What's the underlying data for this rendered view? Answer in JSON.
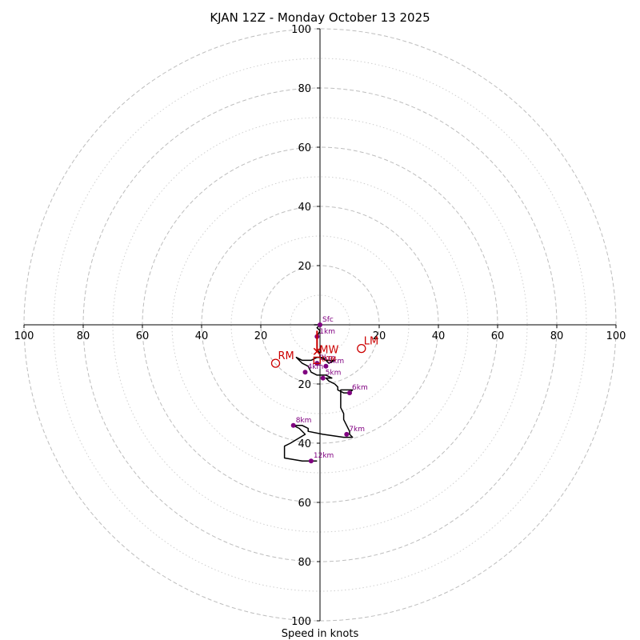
{
  "chart_data": {
    "type": "hodograph",
    "title": "KJAN 12Z - Monday October 13 2025",
    "xlabel": "Speed in knots",
    "xlim": [
      -100,
      100
    ],
    "ylim": [
      -100,
      100
    ],
    "tick_labels": [
      "100",
      "80",
      "60",
      "40",
      "20"
    ],
    "ring_speeds_dashed": [
      20,
      40,
      60,
      80,
      100
    ],
    "ring_speeds_dotted": [
      10,
      30,
      50,
      70,
      90
    ],
    "hodograph_trace": [
      [
        -2,
        0
      ],
      [
        0,
        0
      ],
      [
        -1,
        -1
      ],
      [
        0,
        -2
      ],
      [
        -1,
        -4
      ],
      [
        -1,
        -6
      ],
      [
        -1,
        -8
      ],
      [
        0,
        -10
      ],
      [
        0,
        -11
      ],
      [
        2,
        -12
      ],
      [
        5,
        -12
      ],
      [
        3,
        -13
      ],
      [
        1,
        -11
      ],
      [
        -1,
        -11
      ],
      [
        -3,
        -12
      ],
      [
        -6,
        -12
      ],
      [
        -8,
        -11
      ],
      [
        -6,
        -13
      ],
      [
        -4,
        -14
      ],
      [
        -3,
        -16
      ],
      [
        -1,
        -17
      ],
      [
        2,
        -17
      ],
      [
        4,
        -18
      ],
      [
        2,
        -18
      ],
      [
        3,
        -19
      ],
      [
        5,
        -20
      ],
      [
        6,
        -21
      ],
      [
        6,
        -22
      ],
      [
        8,
        -23
      ],
      [
        10,
        -23
      ],
      [
        11,
        -22
      ],
      [
        10,
        -22
      ],
      [
        7,
        -22
      ],
      [
        7,
        -24
      ],
      [
        7,
        -26
      ],
      [
        7,
        -27
      ],
      [
        7,
        -28
      ],
      [
        8,
        -30
      ],
      [
        8,
        -32
      ],
      [
        9,
        -34
      ],
      [
        10,
        -36
      ],
      [
        10,
        -37
      ],
      [
        11,
        -38
      ],
      [
        8,
        -38
      ],
      [
        1,
        -37
      ],
      [
        -4,
        -36
      ],
      [
        -4,
        -35
      ],
      [
        -6,
        -34
      ],
      [
        -9,
        -34
      ],
      [
        -7,
        -35
      ],
      [
        -5,
        -37
      ],
      [
        -10,
        -40
      ],
      [
        -12,
        -41
      ],
      [
        -12,
        -45
      ],
      [
        -6,
        -46
      ],
      [
        -3,
        -46
      ],
      [
        -1,
        -46
      ]
    ],
    "height_markers": [
      {
        "label": "Sfc",
        "u": 0,
        "v": 0
      },
      {
        "label": "1km",
        "u": -1,
        "v": -4
      },
      {
        "label": "2km",
        "u": 2,
        "v": -14
      },
      {
        "label": "3km",
        "u": -1,
        "v": -13
      },
      {
        "label": "4km",
        "u": -5,
        "v": -16
      },
      {
        "label": "5km",
        "u": 1,
        "v": -18
      },
      {
        "label": "6km",
        "u": 10,
        "v": -23
      },
      {
        "label": "7km",
        "u": 9,
        "v": -37
      },
      {
        "label": "8km",
        "u": -9,
        "v": -34
      },
      {
        "label": "12km",
        "u": -3,
        "v": -46
      }
    ],
    "annotations": [
      {
        "label": "RM",
        "u": -15,
        "v": -13,
        "marker": "circle"
      },
      {
        "label": "LM",
        "u": 14,
        "v": -8,
        "marker": "circle"
      },
      {
        "label": "MW",
        "u": -1,
        "v": -9,
        "marker": "x"
      },
      {
        "label": "DTM",
        "u": -1,
        "v": -12,
        "marker": "square"
      }
    ],
    "colors": {
      "trace": "#000000",
      "markers": "#800080",
      "annotations": "#cc0000",
      "rings": "#bdbdbd"
    }
  }
}
